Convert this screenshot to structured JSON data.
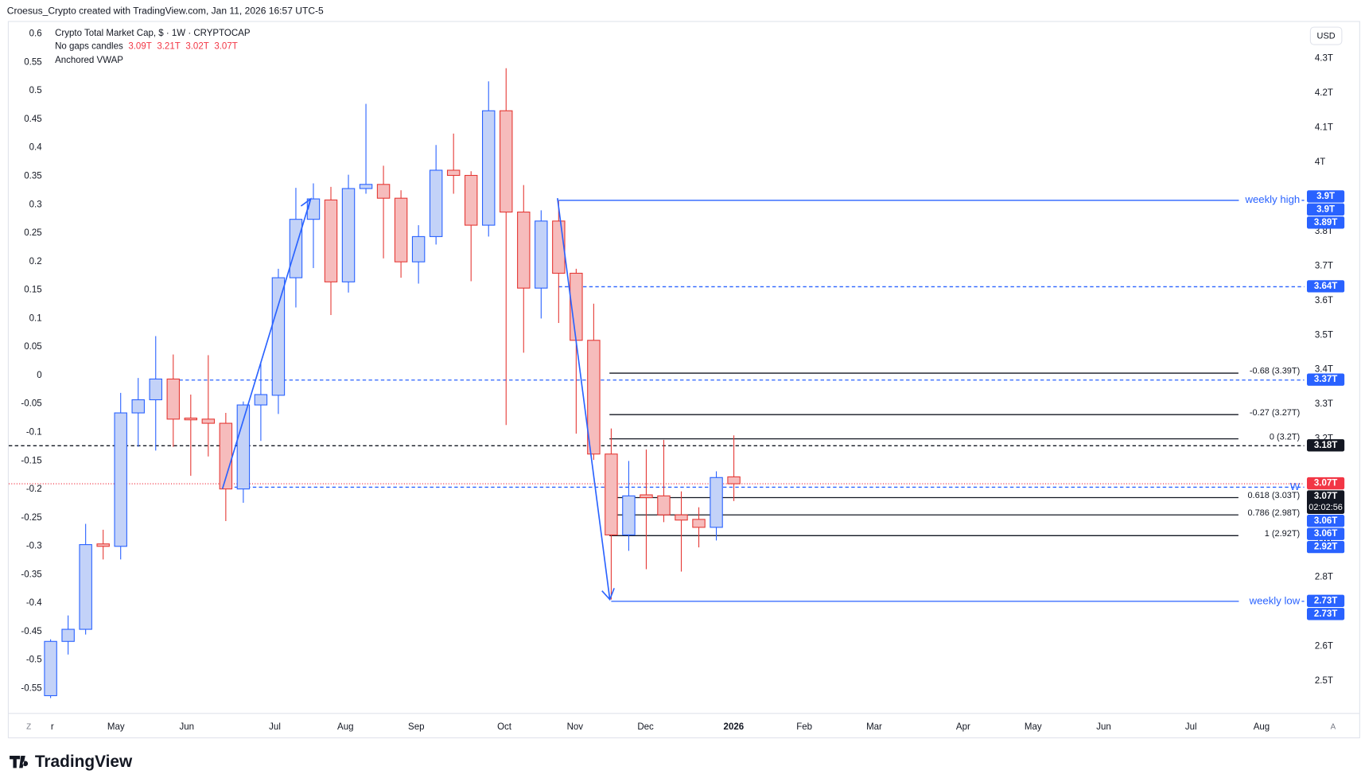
{
  "chart_data": {
    "type": "candlestick",
    "attribution": "Croesus_Crypto created with TradingView.com, Jan 11, 2026 16:57 UTC-5",
    "title": "Crypto Total Market Cap, $ · 1W · CRYPTOCAP",
    "candle_style": "No gaps candles",
    "ohlc_labels": [
      "3.09T",
      "3.21T",
      "3.02T",
      "3.07T"
    ],
    "indicator": "Anchored VWAP",
    "currency": "USD",
    "corner_buttons": [
      "Z",
      "A"
    ],
    "brand": "TradingView",
    "up_color": "#2962ff",
    "up_fill": "#c3d2f8",
    "down_color": "#e53935",
    "down_fill": "#f6bcbc",
    "candles": {
      "open": [
        2.457,
        2.614,
        2.649,
        2.896,
        2.889,
        3.275,
        3.313,
        3.373,
        3.26,
        3.257,
        3.245,
        3.055,
        3.298,
        3.326,
        3.666,
        3.835,
        3.891,
        3.654,
        3.924,
        3.936,
        3.896,
        3.712,
        3.785,
        3.977,
        3.962,
        3.818,
        4.149,
        3.856,
        3.636,
        3.83,
        3.679,
        3.485,
        3.156,
        2.922,
        3.038,
        3.035,
        2.98,
        2.967,
        2.944,
        3.09
      ],
      "high": [
        2.62,
        2.689,
        2.954,
        2.937,
        3.333,
        3.376,
        3.497,
        3.444,
        3.328,
        3.442,
        3.275,
        3.308,
        3.421,
        3.692,
        3.926,
        3.939,
        3.929,
        3.964,
        4.169,
        3.99,
        3.919,
        3.818,
        4.05,
        4.083,
        3.974,
        4.234,
        4.272,
        3.934,
        3.861,
        3.888,
        3.692,
        3.591,
        3.23,
        3.136,
        3.169,
        3.197,
        3.048,
        3.002,
        3.106,
        3.21
      ],
      "low": [
        2.45,
        2.576,
        2.634,
        2.851,
        2.851,
        3.177,
        3.166,
        3.177,
        3.093,
        3.149,
        2.962,
        3.015,
        3.194,
        3.272,
        3.58,
        3.694,
        3.558,
        3.623,
        3.909,
        3.722,
        3.666,
        3.649,
        3.762,
        3.909,
        3.656,
        3.785,
        3.24,
        3.449,
        3.548,
        3.535,
        3.215,
        3.139,
        2.735,
        2.876,
        2.823,
        2.959,
        2.816,
        2.886,
        2.906,
        3.02
      ],
      "close": [
        2.614,
        2.649,
        2.894,
        2.889,
        3.275,
        3.313,
        3.373,
        3.257,
        3.255,
        3.245,
        3.055,
        3.298,
        3.328,
        3.666,
        3.835,
        3.894,
        3.654,
        3.924,
        3.936,
        3.896,
        3.712,
        3.785,
        3.977,
        3.962,
        3.818,
        4.149,
        3.856,
        3.636,
        3.83,
        3.679,
        3.485,
        3.156,
        2.922,
        3.035,
        3.03,
        2.98,
        2.965,
        2.944,
        3.088,
        3.07
      ]
    },
    "xlim": [
      -2.39,
      71.56
    ],
    "xticks": [
      {
        "value": 0.1,
        "label": "r"
      },
      {
        "value": 3.73,
        "label": "May"
      },
      {
        "value": 7.77,
        "label": "Jun"
      },
      {
        "value": 12.8,
        "label": "Jul"
      },
      {
        "value": 16.83,
        "label": "Aug"
      },
      {
        "value": 20.87,
        "label": "Sep"
      },
      {
        "value": 25.9,
        "label": "Oct"
      },
      {
        "value": 29.93,
        "label": "Nov"
      },
      {
        "value": 33.96,
        "label": "Dec"
      },
      {
        "value": 38.99,
        "label": "2026"
      },
      {
        "value": 43.02,
        "label": "Feb"
      },
      {
        "value": 47.01,
        "label": "Mar"
      },
      {
        "value": 52.09,
        "label": "Apr"
      },
      {
        "value": 56.08,
        "label": "May"
      },
      {
        "value": 60.11,
        "label": "Jun"
      },
      {
        "value": 65.09,
        "label": "Jul"
      },
      {
        "value": 69.12,
        "label": "Aug"
      }
    ],
    "ylim": [
      2.407,
      4.406
    ],
    "yticks": [
      {
        "value": 4.3,
        "label": "4.3T"
      },
      {
        "value": 4.2,
        "label": "4.2T"
      },
      {
        "value": 4.1,
        "label": "4.1T"
      },
      {
        "value": 4,
        "label": "4T"
      },
      {
        "value": 3.8,
        "label": "3.8T"
      },
      {
        "value": 3.7,
        "label": "3.7T"
      },
      {
        "value": 3.6,
        "label": "3.6T"
      },
      {
        "value": 3.5,
        "label": "3.5T"
      },
      {
        "value": 3.4,
        "label": "3.4T"
      },
      {
        "value": 3.3,
        "label": "3.3T"
      },
      {
        "value": 3.2,
        "label": "3.2T"
      },
      {
        "value": 2.9,
        "label": "2.9T"
      },
      {
        "value": 2.8,
        "label": "2.8T"
      },
      {
        "value": 2.6,
        "label": "2.6T"
      },
      {
        "value": 2.5,
        "label": "2.5T"
      }
    ],
    "y2lim": [
      -0.593,
      0.621
    ],
    "y2ticks": [
      0.6,
      0.55,
      0.5,
      0.45,
      0.4,
      0.35,
      0.3,
      0.25,
      0.2,
      0.15,
      0.1,
      0.05,
      0,
      -0.05,
      -0.1,
      -0.15,
      -0.2,
      -0.25,
      -0.3,
      -0.35,
      -0.4,
      -0.45,
      -0.5,
      -0.55
    ],
    "levels": [
      {
        "value": 3.89,
        "label": "weekly high",
        "color": "#2962ff",
        "style": "solid",
        "from": 29
      },
      {
        "value": 2.73,
        "label": "weekly low",
        "color": "#2962ff",
        "style": "solid",
        "from": 32
      },
      {
        "value": 3.64,
        "color": "#2962ff",
        "style": "dashed",
        "from": 29
      },
      {
        "value": 3.37,
        "color": "#2962ff",
        "style": "dashed",
        "from": 7
      },
      {
        "value": 3.06,
        "label": "W",
        "color": "#2962ff",
        "style": "dashed",
        "from": 9.8
      },
      {
        "value": 3.18,
        "color": "#131722",
        "style": "dashed",
        "from": -2.39
      },
      {
        "value": 3.07,
        "color": "#f23645",
        "style": "dotted",
        "from": -2.39
      }
    ],
    "fib": {
      "from": 31.9,
      "to": 67.8,
      "color": "#131722",
      "levels": [
        {
          "value": 3.39,
          "label": "-0.68 (3.39T)"
        },
        {
          "value": 3.27,
          "label": "-0.27 (3.27T)"
        },
        {
          "value": 3.2,
          "label": "0 (3.2T)"
        },
        {
          "value": 3.03,
          "label": "0.618 (3.03T)"
        },
        {
          "value": 2.98,
          "label": "0.786 (2.98T)"
        },
        {
          "value": 2.92,
          "label": "1 (2.92T)"
        }
      ]
    },
    "price_labels": [
      {
        "value": 3.9,
        "label": "3.9T",
        "color": "#2962ff"
      },
      {
        "value": 3.9,
        "label": "3.9T",
        "color": "#2962ff"
      },
      {
        "value": 3.89,
        "label": "3.89T",
        "color": "#2962ff"
      },
      {
        "value": 3.64,
        "label": "3.64T",
        "color": "#2962ff"
      },
      {
        "value": 3.37,
        "label": "3.37T",
        "color": "#2962ff"
      },
      {
        "value": 3.18,
        "label": "3.18T",
        "color": "#131722"
      },
      {
        "value": 3.07,
        "label": "3.07T",
        "color": "#f23645"
      },
      {
        "value": 3.07,
        "label": "3.07T",
        "color": "#131722",
        "countdown": "02:02:56"
      },
      {
        "value": 3.06,
        "label": "3.06T",
        "color": "#2962ff"
      },
      {
        "value": 3.06,
        "label": "3.06T",
        "color": "#2962ff"
      },
      {
        "value": 2.92,
        "label": "2.92T",
        "color": "#2962ff"
      },
      {
        "value": 2.73,
        "label": "2.73T",
        "color": "#2962ff"
      },
      {
        "value": 2.73,
        "label": "2.73T",
        "color": "#2962ff"
      }
    ]
  }
}
